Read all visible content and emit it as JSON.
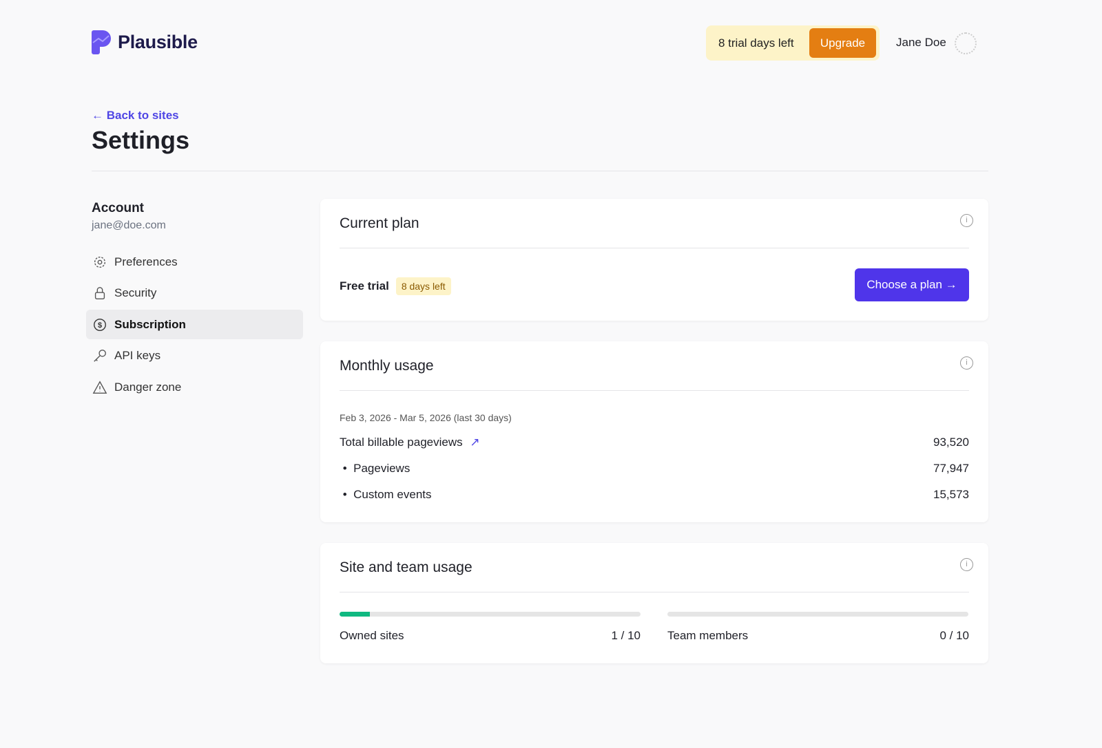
{
  "header": {
    "brand": "Plausible",
    "trial_text": "8 trial days left",
    "upgrade_label": "Upgrade",
    "user_name": "Jane Doe"
  },
  "page": {
    "back_label": "← Back to sites",
    "title": "Settings"
  },
  "sidebar": {
    "section": "Account",
    "email": "jane@doe.com",
    "items": [
      {
        "label": "Preferences",
        "icon": "gear-icon"
      },
      {
        "label": "Security",
        "icon": "lock-icon"
      },
      {
        "label": "Subscription",
        "icon": "dollar-icon",
        "active": true
      },
      {
        "label": "API keys",
        "icon": "key-icon"
      },
      {
        "label": "Danger zone",
        "icon": "warning-icon"
      }
    ]
  },
  "current_plan": {
    "title": "Current plan",
    "plan": "Free trial",
    "badge": "8 days left",
    "cta": "Choose a plan →"
  },
  "monthly_usage": {
    "title": "Monthly usage",
    "period": "Feb 3, 2026 - Mar 5, 2026 (last 30 days)",
    "total_label": "Total billable pageviews",
    "total_value": "93,520",
    "rows": [
      {
        "label": "Pageviews",
        "value": "77,947"
      },
      {
        "label": "Custom events",
        "value": "15,573"
      }
    ]
  },
  "site_team": {
    "title": "Site and team usage",
    "sites_label": "Owned sites",
    "sites_value": "1 / 10",
    "sites_fraction": 0.1,
    "team_label": "Team members",
    "team_value": "0 / 10",
    "team_fraction": 0
  },
  "colors": {
    "accent": "#4f35ea",
    "upgrade": "#e47e12",
    "trial_bg": "#fdf3c8",
    "progress": "#10b981"
  }
}
